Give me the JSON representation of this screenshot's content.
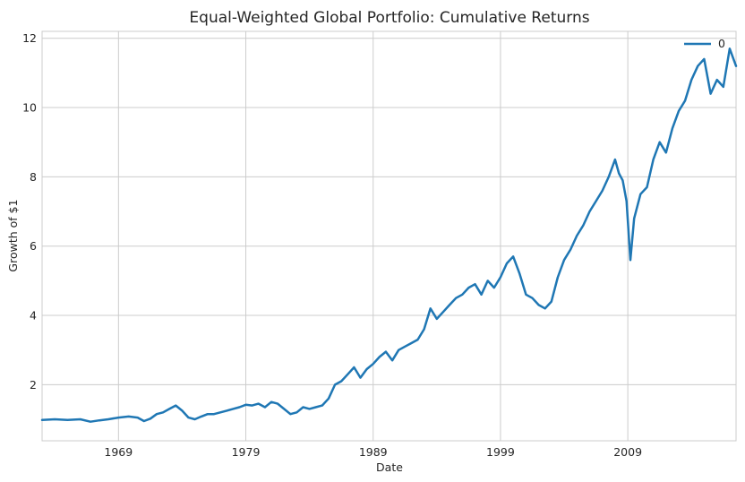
{
  "chart_data": {
    "type": "line",
    "title": "Equal-Weighted Global Portfolio: Cumulative Returns",
    "xlabel": "Date",
    "ylabel": "Growth of $1",
    "xlim": [
      1963,
      2017.5
    ],
    "ylim": [
      0.38,
      12.2
    ],
    "xticks": [
      1969,
      1979,
      1989,
      1999,
      2009
    ],
    "xtick_labels": [
      "1969",
      "1979",
      "1989",
      "1999",
      "2009"
    ],
    "yticks": [
      2,
      4,
      6,
      8,
      10,
      12
    ],
    "ytick_labels": [
      "2",
      "4",
      "6",
      "8",
      "10",
      "12"
    ],
    "grid": true,
    "legend": {
      "position": "top-right",
      "entries": [
        "0"
      ]
    },
    "colors": {
      "line": "#1f77b4",
      "grid": "#cccccc",
      "text": "#262626"
    },
    "series": [
      {
        "name": "0",
        "x": [
          1963.0,
          1964.0,
          1965.0,
          1966.0,
          1966.8,
          1967.5,
          1968.2,
          1969.0,
          1969.8,
          1970.5,
          1971.0,
          1971.5,
          1972.0,
          1972.5,
          1973.0,
          1973.5,
          1974.0,
          1974.5,
          1975.0,
          1975.5,
          1976.0,
          1976.5,
          1977.0,
          1977.5,
          1978.0,
          1978.5,
          1979.0,
          1979.5,
          1980.0,
          1980.5,
          1981.0,
          1981.5,
          1982.0,
          1982.5,
          1983.0,
          1983.5,
          1984.0,
          1984.5,
          1985.0,
          1985.5,
          1986.0,
          1986.5,
          1987.0,
          1987.5,
          1988.0,
          1988.5,
          1989.0,
          1989.5,
          1990.0,
          1990.5,
          1991.0,
          1991.5,
          1992.0,
          1992.5,
          1993.0,
          1993.5,
          1994.0,
          1994.5,
          1995.0,
          1995.5,
          1996.0,
          1996.5,
          1997.0,
          1997.5,
          1998.0,
          1998.5,
          1999.0,
          1999.5,
          2000.0,
          2000.5,
          2001.0,
          2001.5,
          2002.0,
          2002.5,
          2003.0,
          2003.5,
          2004.0,
          2004.5,
          2005.0,
          2005.5,
          2006.0,
          2006.5,
          2007.0,
          2007.5,
          2008.0,
          2008.3,
          2008.6,
          2008.9,
          2009.2,
          2009.5,
          2010.0,
          2010.5,
          2011.0,
          2011.5,
          2012.0,
          2012.5,
          2013.0,
          2013.5,
          2014.0,
          2014.5,
          2015.0,
          2015.5,
          2016.0,
          2016.5,
          2017.0,
          2017.5
        ],
        "values": [
          0.98,
          1.0,
          0.98,
          1.0,
          0.93,
          0.97,
          1.0,
          1.05,
          1.08,
          1.05,
          0.95,
          1.02,
          1.15,
          1.2,
          1.3,
          1.4,
          1.25,
          1.05,
          1.0,
          1.08,
          1.15,
          1.15,
          1.2,
          1.25,
          1.3,
          1.35,
          1.42,
          1.4,
          1.45,
          1.35,
          1.5,
          1.45,
          1.3,
          1.15,
          1.2,
          1.35,
          1.3,
          1.35,
          1.4,
          1.6,
          2.0,
          2.1,
          2.3,
          2.5,
          2.2,
          2.45,
          2.6,
          2.8,
          2.95,
          2.7,
          3.0,
          3.1,
          3.2,
          3.3,
          3.6,
          4.2,
          3.9,
          4.1,
          4.3,
          4.5,
          4.6,
          4.8,
          4.9,
          4.6,
          5.0,
          4.8,
          5.1,
          5.5,
          5.7,
          5.2,
          4.6,
          4.5,
          4.3,
          4.2,
          4.4,
          5.1,
          5.6,
          5.9,
          6.3,
          6.6,
          7.0,
          7.3,
          7.6,
          8.0,
          8.5,
          8.1,
          7.9,
          7.3,
          5.6,
          6.8,
          7.5,
          7.7,
          8.5,
          9.0,
          8.7,
          9.4,
          9.9,
          10.2,
          10.8,
          11.2,
          11.4,
          10.4,
          10.8,
          10.6,
          11.7,
          11.2
        ]
      }
    ]
  }
}
